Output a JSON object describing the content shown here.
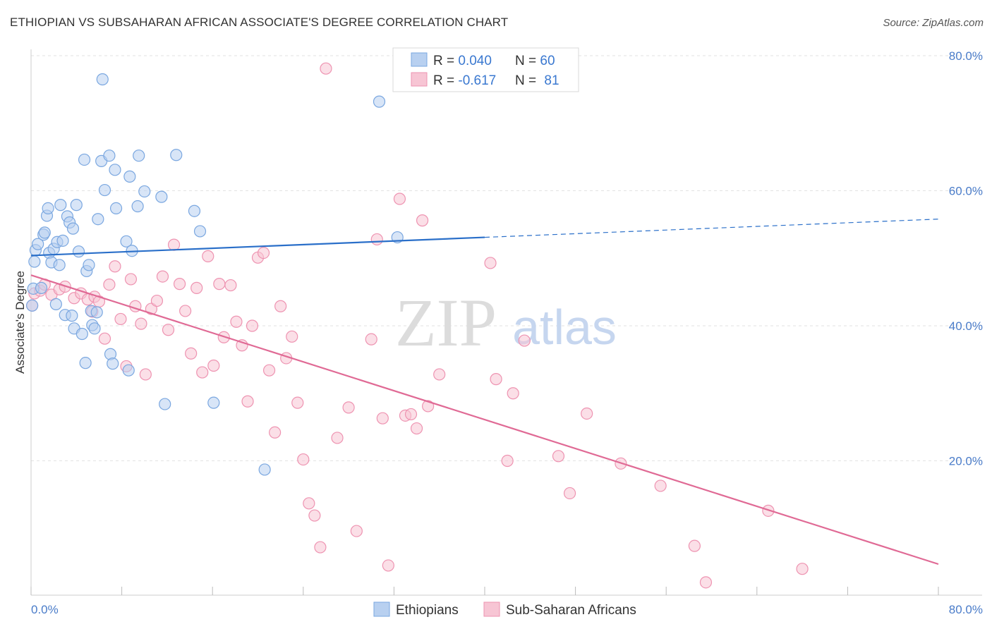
{
  "header": {
    "title": "ETHIOPIAN VS SUBSAHARAN AFRICAN ASSOCIATE'S DEGREE CORRELATION CHART",
    "source": "Source: ZipAtlas.com"
  },
  "watermark": {
    "zip": "ZIP",
    "atlas": "atlas"
  },
  "colors": {
    "ethiopians_fill": "#b8d0f0",
    "ethiopians_stroke": "#7aa7e0",
    "ethiopians_line": "#2a6fc9",
    "subsaharan_fill": "#f7c5d4",
    "subsaharan_stroke": "#ee93b1",
    "subsaharan_line": "#e06a95",
    "tick_label": "#4a7cc9",
    "grid": "#e2e2e2"
  },
  "legend": {
    "rows": [
      {
        "r_label": "R = ",
        "r_value": "0.040",
        "n_label": "N = ",
        "n_value": "60"
      },
      {
        "r_label": "R = ",
        "r_value": "-0.617",
        "n_label": "N = ",
        "n_value": "81"
      }
    ]
  },
  "chart_data": {
    "type": "scatter",
    "title": "ETHIOPIAN VS SUBSAHARAN AFRICAN ASSOCIATE'S DEGREE CORRELATION CHART",
    "xlabel": "",
    "ylabel": "Associate's Degree",
    "xlim": [
      0,
      80
    ],
    "ylim": [
      0,
      80
    ],
    "x_tick_labels": [
      "0.0%",
      "80.0%"
    ],
    "y_ticks": [
      20,
      40,
      60,
      80
    ],
    "y_tick_labels": [
      "20.0%",
      "40.0%",
      "60.0%",
      "80.0%"
    ],
    "grid": true,
    "legend_position": "top-center",
    "series": [
      {
        "name": "Ethiopians",
        "r": 0.04,
        "n": 60,
        "trend": {
          "x": [
            0,
            40,
            80
          ],
          "y": [
            50.4,
            53.1,
            55.8
          ],
          "solid_until_x": 40
        },
        "points": [
          [
            0.2,
            45.5
          ],
          [
            0.3,
            49.5
          ],
          [
            0.4,
            51.2
          ],
          [
            0.6,
            52.1
          ],
          [
            0.9,
            45.6
          ],
          [
            1.1,
            53.5
          ],
          [
            1.2,
            53.8
          ],
          [
            1.4,
            56.3
          ],
          [
            1.5,
            57.4
          ],
          [
            1.6,
            50.8
          ],
          [
            1.8,
            49.4
          ],
          [
            2.0,
            51.4
          ],
          [
            2.2,
            43.2
          ],
          [
            2.3,
            52.4
          ],
          [
            2.5,
            49.0
          ],
          [
            2.6,
            57.9
          ],
          [
            2.8,
            52.6
          ],
          [
            3.0,
            41.6
          ],
          [
            3.2,
            56.2
          ],
          [
            3.4,
            55.3
          ],
          [
            3.6,
            41.5
          ],
          [
            3.7,
            54.4
          ],
          [
            3.8,
            39.6
          ],
          [
            4.0,
            57.9
          ],
          [
            4.2,
            51.0
          ],
          [
            4.5,
            38.8
          ],
          [
            4.7,
            64.6
          ],
          [
            4.8,
            34.5
          ],
          [
            4.9,
            48.1
          ],
          [
            5.1,
            49.0
          ],
          [
            5.3,
            42.2
          ],
          [
            5.4,
            40.1
          ],
          [
            5.6,
            39.6
          ],
          [
            5.8,
            42.0
          ],
          [
            5.9,
            55.8
          ],
          [
            6.2,
            64.4
          ],
          [
            6.3,
            76.5
          ],
          [
            6.5,
            60.1
          ],
          [
            6.9,
            65.2
          ],
          [
            7.0,
            35.8
          ],
          [
            7.2,
            34.4
          ],
          [
            7.4,
            63.1
          ],
          [
            7.5,
            57.4
          ],
          [
            8.4,
            52.5
          ],
          [
            8.6,
            33.4
          ],
          [
            8.7,
            62.1
          ],
          [
            8.9,
            51.1
          ],
          [
            9.4,
            57.7
          ],
          [
            9.5,
            65.2
          ],
          [
            10.0,
            59.9
          ],
          [
            11.5,
            59.1
          ],
          [
            11.8,
            28.4
          ],
          [
            12.8,
            65.3
          ],
          [
            14.4,
            57.0
          ],
          [
            14.9,
            54.0
          ],
          [
            16.1,
            28.6
          ],
          [
            20.6,
            18.7
          ],
          [
            30.7,
            73.2
          ],
          [
            32.3,
            53.1
          ],
          [
            0.1,
            43.0
          ]
        ]
      },
      {
        "name": "Sub-Saharan Africans",
        "r": -0.617,
        "n": 81,
        "trend": {
          "x": [
            0,
            80
          ],
          "y": [
            47.5,
            4.7
          ]
        },
        "points": [
          [
            0.1,
            43.0
          ],
          [
            0.3,
            44.8
          ],
          [
            0.8,
            45.2
          ],
          [
            1.2,
            46.1
          ],
          [
            1.8,
            44.6
          ],
          [
            2.5,
            45.4
          ],
          [
            3.0,
            45.8
          ],
          [
            3.8,
            44.1
          ],
          [
            4.4,
            44.8
          ],
          [
            5.0,
            43.9
          ],
          [
            5.4,
            42.1
          ],
          [
            5.6,
            44.3
          ],
          [
            6.0,
            43.6
          ],
          [
            6.5,
            38.1
          ],
          [
            6.9,
            46.1
          ],
          [
            7.4,
            48.8
          ],
          [
            7.9,
            41.0
          ],
          [
            8.4,
            34.0
          ],
          [
            8.8,
            46.9
          ],
          [
            9.2,
            42.9
          ],
          [
            9.7,
            40.3
          ],
          [
            10.1,
            32.8
          ],
          [
            10.6,
            42.5
          ],
          [
            11.1,
            43.7
          ],
          [
            11.6,
            47.3
          ],
          [
            12.1,
            39.4
          ],
          [
            12.6,
            52.0
          ],
          [
            13.1,
            46.2
          ],
          [
            13.6,
            42.2
          ],
          [
            14.1,
            35.9
          ],
          [
            14.6,
            45.6
          ],
          [
            15.1,
            33.1
          ],
          [
            15.6,
            50.3
          ],
          [
            16.1,
            34.1
          ],
          [
            16.6,
            46.2
          ],
          [
            17.0,
            38.3
          ],
          [
            17.6,
            46.0
          ],
          [
            18.1,
            40.6
          ],
          [
            18.6,
            37.1
          ],
          [
            19.1,
            28.8
          ],
          [
            19.5,
            40.0
          ],
          [
            20.0,
            50.1
          ],
          [
            20.5,
            50.8
          ],
          [
            21.0,
            33.4
          ],
          [
            21.5,
            24.2
          ],
          [
            22.0,
            42.9
          ],
          [
            22.5,
            35.2
          ],
          [
            23.0,
            38.4
          ],
          [
            23.5,
            28.6
          ],
          [
            24.0,
            20.2
          ],
          [
            24.5,
            13.7
          ],
          [
            25.0,
            11.9
          ],
          [
            25.5,
            7.2
          ],
          [
            26.0,
            78.1
          ],
          [
            27.0,
            23.4
          ],
          [
            28.0,
            27.9
          ],
          [
            28.7,
            9.6
          ],
          [
            30.0,
            38.0
          ],
          [
            30.5,
            52.8
          ],
          [
            31.0,
            26.3
          ],
          [
            31.5,
            4.5
          ],
          [
            32.5,
            58.8
          ],
          [
            33.0,
            26.7
          ],
          [
            33.5,
            26.9
          ],
          [
            34.0,
            24.8
          ],
          [
            34.5,
            55.6
          ],
          [
            35.0,
            28.1
          ],
          [
            36.0,
            32.8
          ],
          [
            40.5,
            49.3
          ],
          [
            41.0,
            32.1
          ],
          [
            42.0,
            20.0
          ],
          [
            42.5,
            30.0
          ],
          [
            43.5,
            37.8
          ],
          [
            46.5,
            20.7
          ],
          [
            47.5,
            15.2
          ],
          [
            49.0,
            27.0
          ],
          [
            52.0,
            19.6
          ],
          [
            55.5,
            16.3
          ],
          [
            58.5,
            7.4
          ],
          [
            59.5,
            2.0
          ],
          [
            65.0,
            12.6
          ],
          [
            68.0,
            4.0
          ]
        ]
      }
    ]
  },
  "bottom_legend": [
    {
      "label": "Ethiopians"
    },
    {
      "label": "Sub-Saharan Africans"
    }
  ]
}
